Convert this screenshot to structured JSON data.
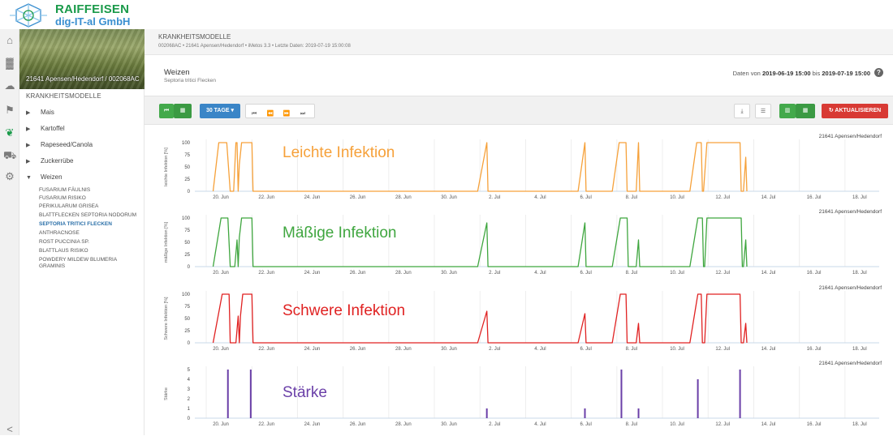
{
  "brand": {
    "name_line1": "RAIFFEISEN",
    "name_line2": "dig-IT-al GmbH"
  },
  "iconbar": [
    {
      "icon": "home-icon",
      "glyph": "⌂"
    },
    {
      "icon": "bar-chart-icon",
      "glyph": "▓"
    },
    {
      "icon": "weather-icon",
      "glyph": "☁"
    },
    {
      "icon": "farm-icon",
      "glyph": "⚑"
    },
    {
      "icon": "leaf-icon",
      "glyph": "❦"
    },
    {
      "icon": "tractor-icon",
      "glyph": "⛟"
    },
    {
      "icon": "gear-icon",
      "glyph": "⚙"
    },
    {
      "icon": "collapse-icon",
      "glyph": "<"
    }
  ],
  "sidebar": {
    "station": "21641 Apensen/Hedendorf / 002068AC",
    "heading": "KRANKHEITSMODELLE",
    "crops": [
      {
        "label": "Mais",
        "expanded": false
      },
      {
        "label": "Kartoffel",
        "expanded": false
      },
      {
        "label": "Rapeseed/Canola",
        "expanded": false
      },
      {
        "label": "Zuckerrübe",
        "expanded": false
      },
      {
        "label": "Weizen",
        "expanded": true
      }
    ],
    "weizen_models": [
      "FUSARIUM FÄULNIS",
      "FUSARIUM RISIKO",
      "PERIKULARUM GRISEA",
      "BLATTFLECKEN SEPTORIA NODORUM",
      "SEPTORIA TRITICI FLECKEN",
      "ANTHRACNOSE",
      "ROST PUCCINIA SP.",
      "BLATTLAUS RISIKO",
      "POWDERY MILDEW BLUMERIA GRAMINIS"
    ],
    "active_model": "SEPTORIA TRITICI FLECKEN"
  },
  "header": {
    "section": "KRANKHEITSMODELLE",
    "meta": "002068AC • 21641 Apensen/Hedendorf • iMetos 3.3 • Letzte Daten: 2019-07-19 15:00:08",
    "crop": "Weizen",
    "model": "Septoria tritici Flecken",
    "date_prefix": "Daten von",
    "date_from": "2019-06-19 15:00",
    "date_mid": "bis",
    "date_to": "2019-07-19 15:00"
  },
  "toolbar": {
    "range_label": "30 TAGE",
    "refresh_label": "AKTUALISIEREN"
  },
  "colors": {
    "orange": "#f6a13a",
    "green": "#3fa63f",
    "red": "#e02222",
    "purple": "#6a3fa8",
    "axis": "#c9d8e8"
  },
  "chart_data": [
    {
      "type": "line",
      "station": "21641 Apensen/Hedendorf",
      "overlay_title": "Leichte Infektion",
      "overlay_color": "#f6a13a",
      "ylabel": "leichte Infektion [%]",
      "yticks": [
        0,
        25,
        50,
        75,
        100
      ],
      "ylim": [
        0,
        100
      ],
      "xticks": [
        "20. Jun",
        "22. Jun",
        "24. Jun",
        "26. Jun",
        "28. Jun",
        "30. Jun",
        "2. Jul",
        "4. Jul",
        "6. Jul",
        "8. Jul",
        "10. Jul",
        "12. Jul",
        "14. Jul",
        "16. Jul",
        "18. Jul"
      ],
      "x_day_range": [
        19.5,
        49.5
      ],
      "series": [
        {
          "points": [
            [
              20.3,
              0
            ],
            [
              20.55,
              100
            ],
            [
              20.9,
              100
            ],
            [
              21.05,
              0
            ],
            [
              21.2,
              0
            ],
            [
              21.3,
              100
            ],
            [
              21.35,
              100
            ],
            [
              21.4,
              0
            ],
            [
              21.45,
              55
            ],
            [
              21.55,
              100
            ],
            [
              22.0,
              100
            ],
            [
              22.05,
              0
            ],
            [
              31.9,
              0
            ],
            [
              32.3,
              100
            ],
            [
              32.35,
              0
            ],
            [
              36.3,
              0
            ],
            [
              36.6,
              100
            ],
            [
              36.65,
              0
            ],
            [
              37.8,
              0
            ],
            [
              38.1,
              100
            ],
            [
              38.4,
              100
            ],
            [
              38.45,
              0
            ],
            [
              38.85,
              0
            ],
            [
              38.95,
              100
            ],
            [
              39.0,
              0
            ],
            [
              41.2,
              0
            ],
            [
              41.5,
              100
            ],
            [
              41.7,
              100
            ],
            [
              41.75,
              0
            ],
            [
              41.8,
              0
            ],
            [
              41.95,
              100
            ],
            [
              43.4,
              100
            ],
            [
              43.45,
              0
            ],
            [
              43.55,
              0
            ],
            [
              43.65,
              70
            ],
            [
              43.7,
              0
            ]
          ]
        }
      ]
    },
    {
      "type": "line",
      "station": "21641 Apensen/Hedendorf",
      "overlay_title": "Mäßige Infektion",
      "overlay_color": "#3fa63f",
      "ylabel": "mäßige Infektion [%]",
      "yticks": [
        0,
        25,
        50,
        75,
        100
      ],
      "ylim": [
        0,
        100
      ],
      "xticks": [
        "20. Jun",
        "22. Jun",
        "24. Jun",
        "26. Jun",
        "28. Jun",
        "30. Jun",
        "2. Jul",
        "4. Jul",
        "6. Jul",
        "8. Jul",
        "10. Jul",
        "12. Jul",
        "14. Jul",
        "16. Jul",
        "18. Jul"
      ],
      "x_day_range": [
        19.5,
        49.5
      ],
      "series": [
        {
          "points": [
            [
              20.3,
              0
            ],
            [
              20.65,
              100
            ],
            [
              20.95,
              100
            ],
            [
              21.05,
              0
            ],
            [
              21.25,
              0
            ],
            [
              21.35,
              55
            ],
            [
              21.4,
              0
            ],
            [
              21.45,
              60
            ],
            [
              21.55,
              100
            ],
            [
              22.0,
              100
            ],
            [
              22.05,
              0
            ],
            [
              31.9,
              0
            ],
            [
              32.3,
              90
            ],
            [
              32.35,
              0
            ],
            [
              36.3,
              0
            ],
            [
              36.6,
              90
            ],
            [
              36.65,
              0
            ],
            [
              37.8,
              0
            ],
            [
              38.15,
              100
            ],
            [
              38.45,
              100
            ],
            [
              38.5,
              0
            ],
            [
              38.85,
              0
            ],
            [
              38.95,
              55
            ],
            [
              39.0,
              0
            ],
            [
              41.2,
              0
            ],
            [
              41.55,
              100
            ],
            [
              41.75,
              100
            ],
            [
              41.8,
              0
            ],
            [
              41.85,
              0
            ],
            [
              41.95,
              100
            ],
            [
              43.45,
              100
            ],
            [
              43.5,
              0
            ],
            [
              43.55,
              0
            ],
            [
              43.65,
              55
            ],
            [
              43.7,
              0
            ]
          ]
        }
      ]
    },
    {
      "type": "line",
      "station": "21641 Apensen/Hedendorf",
      "overlay_title": "Schwere Infektion",
      "overlay_color": "#e02222",
      "ylabel": "Schwere Infektion [%]",
      "yticks": [
        0,
        25,
        50,
        75,
        100
      ],
      "ylim": [
        0,
        100
      ],
      "xticks": [
        "20. Jun",
        "22. Jun",
        "24. Jun",
        "26. Jun",
        "28. Jun",
        "30. Jun",
        "2. Jul",
        "4. Jul",
        "6. Jul",
        "8. Jul",
        "10. Jul",
        "12. Jul",
        "14. Jul",
        "16. Jul",
        "18. Jul"
      ],
      "x_day_range": [
        19.5,
        49.5
      ],
      "series": [
        {
          "points": [
            [
              20.3,
              0
            ],
            [
              20.7,
              100
            ],
            [
              21.0,
              100
            ],
            [
              21.05,
              0
            ],
            [
              21.3,
              0
            ],
            [
              21.4,
              55
            ],
            [
              21.45,
              0
            ],
            [
              21.5,
              55
            ],
            [
              21.6,
              100
            ],
            [
              22.0,
              100
            ],
            [
              22.05,
              0
            ],
            [
              31.9,
              0
            ],
            [
              32.3,
              65
            ],
            [
              32.35,
              0
            ],
            [
              36.3,
              0
            ],
            [
              36.6,
              60
            ],
            [
              36.65,
              0
            ],
            [
              37.8,
              0
            ],
            [
              38.15,
              100
            ],
            [
              38.4,
              100
            ],
            [
              38.45,
              0
            ],
            [
              38.85,
              0
            ],
            [
              38.95,
              40
            ],
            [
              39.0,
              0
            ],
            [
              41.2,
              0
            ],
            [
              41.55,
              100
            ],
            [
              41.7,
              100
            ],
            [
              41.75,
              0
            ],
            [
              41.85,
              0
            ],
            [
              41.95,
              100
            ],
            [
              43.4,
              100
            ],
            [
              43.45,
              0
            ],
            [
              43.55,
              0
            ],
            [
              43.65,
              40
            ],
            [
              43.7,
              0
            ]
          ]
        }
      ]
    },
    {
      "type": "bar",
      "station": "21641 Apensen/Hedendorf",
      "overlay_title": "Stärke",
      "overlay_color": "#6a3fa8",
      "ylabel": "Stärke",
      "yticks": [
        0,
        1,
        2,
        3,
        4,
        5
      ],
      "ylim": [
        0,
        5
      ],
      "xticks": [
        "20. Jun",
        "22. Jun",
        "24. Jun",
        "26. Jun",
        "28. Jun",
        "30. Jun",
        "2. Jul",
        "4. Jul",
        "6. Jul",
        "8. Jul",
        "10. Jul",
        "12. Jul",
        "14. Jul",
        "16. Jul",
        "18. Jul"
      ],
      "x_day_range": [
        19.5,
        49.5
      ],
      "series": [
        {
          "points": [
            [
              20.95,
              5
            ],
            [
              21.95,
              5
            ],
            [
              32.3,
              1
            ],
            [
              36.6,
              1
            ],
            [
              38.2,
              5
            ],
            [
              38.95,
              1
            ],
            [
              41.55,
              4
            ],
            [
              43.4,
              5
            ]
          ]
        }
      ]
    }
  ]
}
